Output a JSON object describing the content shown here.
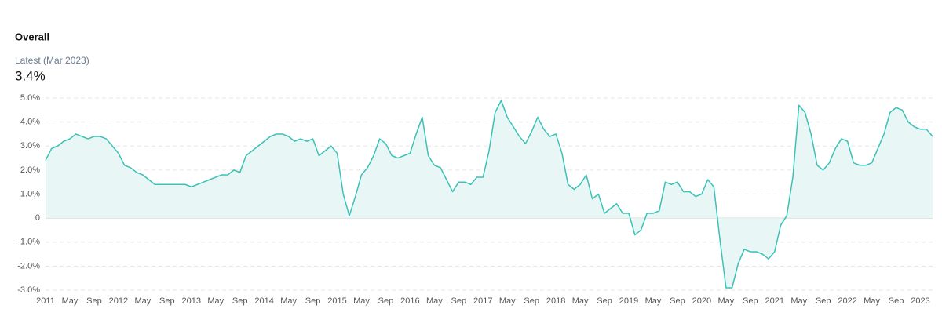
{
  "chart_data": {
    "type": "area",
    "title": "Overall",
    "annotations": [
      "Latest (Mar 2023)",
      "3.4%"
    ],
    "categories": [
      "2011",
      null,
      null,
      null,
      "May",
      null,
      null,
      null,
      "Sep",
      null,
      null,
      null,
      "2012",
      null,
      null,
      null,
      "May",
      null,
      null,
      null,
      "Sep",
      null,
      null,
      null,
      "2013",
      null,
      null,
      null,
      "May",
      null,
      null,
      null,
      "Sep",
      null,
      null,
      null,
      "2014",
      null,
      null,
      null,
      "May",
      null,
      null,
      null,
      "Sep",
      null,
      null,
      null,
      "2015",
      null,
      null,
      null,
      "May",
      null,
      null,
      null,
      "Sep",
      null,
      null,
      null,
      "2016",
      null,
      null,
      null,
      "May",
      null,
      null,
      null,
      "Sep",
      null,
      null,
      null,
      "2017",
      null,
      null,
      null,
      "May",
      null,
      null,
      null,
      "Sep",
      null,
      null,
      null,
      "2018",
      null,
      null,
      null,
      "May",
      null,
      null,
      null,
      "Sep",
      null,
      null,
      null,
      "2019",
      null,
      null,
      null,
      "May",
      null,
      null,
      null,
      "Sep",
      null,
      null,
      null,
      "2020",
      null,
      null,
      null,
      "May",
      null,
      null,
      null,
      "Sep",
      null,
      null,
      null,
      "2021",
      null,
      null,
      null,
      "May",
      null,
      null,
      null,
      "Sep",
      null,
      null,
      null,
      "2022",
      null,
      null,
      null,
      "May",
      null,
      null,
      null,
      "Sep",
      null,
      null,
      null,
      "2023",
      null,
      null
    ],
    "values": [
      2.4,
      2.9,
      3.0,
      3.2,
      3.3,
      3.5,
      3.4,
      3.3,
      3.4,
      3.4,
      3.3,
      3.0,
      2.7,
      2.2,
      2.1,
      1.9,
      1.8,
      1.6,
      1.4,
      1.4,
      1.4,
      1.4,
      1.4,
      1.4,
      1.3,
      1.4,
      1.5,
      1.6,
      1.7,
      1.8,
      1.8,
      2.0,
      1.9,
      2.6,
      2.8,
      3.0,
      3.2,
      3.4,
      3.5,
      3.5,
      3.4,
      3.2,
      3.3,
      3.2,
      3.3,
      2.6,
      2.8,
      3.0,
      2.7,
      1.0,
      0.1,
      0.9,
      1.8,
      2.1,
      2.6,
      3.3,
      3.1,
      2.6,
      2.5,
      2.6,
      2.7,
      3.5,
      4.2,
      2.6,
      2.2,
      2.1,
      1.6,
      1.1,
      1.5,
      1.5,
      1.4,
      1.7,
      1.7,
      2.8,
      4.4,
      4.9,
      4.2,
      3.8,
      3.4,
      3.1,
      3.6,
      4.2,
      3.7,
      3.4,
      3.5,
      2.7,
      1.4,
      1.2,
      1.4,
      1.8,
      0.8,
      1.0,
      0.2,
      0.4,
      0.6,
      0.2,
      0.2,
      -0.7,
      -0.5,
      0.2,
      0.2,
      0.3,
      1.5,
      1.4,
      1.5,
      1.1,
      1.1,
      0.9,
      1.0,
      1.6,
      1.3,
      -0.9,
      -2.9,
      -2.9,
      -1.9,
      -1.3,
      -1.4,
      -1.4,
      -1.5,
      -1.7,
      -1.4,
      -0.3,
      0.1,
      1.7,
      4.7,
      4.4,
      3.5,
      2.2,
      2.0,
      2.3,
      2.9,
      3.3,
      3.2,
      2.3,
      2.2,
      2.2,
      2.3,
      2.9,
      3.5,
      4.4,
      4.6,
      4.5,
      4.0,
      3.8,
      3.7,
      3.7,
      3.4
    ],
    "color": "#3cc1b6",
    "fill": "#e8f7f5",
    "ylim": [
      -3.0,
      5.0
    ],
    "yticks": [
      {
        "value": -3.0,
        "label": "-3.0%"
      },
      {
        "value": -2.0,
        "label": "-2.0%"
      },
      {
        "value": -1.0,
        "label": "-1.0%"
      },
      0,
      {
        "value": 1.0,
        "label": "1.0%"
      },
      {
        "value": 2.0,
        "label": "2.0%"
      },
      {
        "value": 3.0,
        "label": "3.0%"
      },
      {
        "value": 4.0,
        "label": "4.0%"
      },
      {
        "value": 5.0,
        "label": "5.0%"
      }
    ],
    "grid": true
  }
}
